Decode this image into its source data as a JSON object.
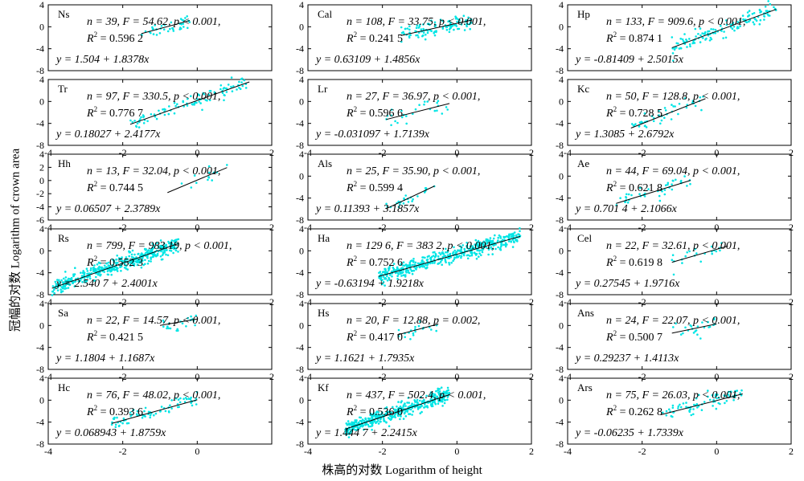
{
  "figure": {
    "xlabel": "株高的对数 Logarithm of height",
    "ylabel": "冠幅的对数 Logarithm of crown area"
  },
  "chart_data": [
    {
      "type": "scatter",
      "species": "Ns",
      "stats": "n = 39, F = 54.62, p < 0.001,",
      "r2_prefix": "R",
      "r2_value": " = 0.596 2",
      "equation": "y = 1.504 + 1.8378x",
      "intercept": 1.504,
      "slope": 1.8378,
      "xrange": [
        -1.5,
        -0.2
      ],
      "n_points": 39,
      "xlim": [
        -4,
        2
      ],
      "ylim": [
        -8,
        4
      ],
      "xticks": [],
      "yticks": [
        "4",
        "0",
        "-4",
        "-8"
      ],
      "point_color": "#00e5e5"
    },
    {
      "type": "scatter",
      "species": "Cal",
      "stats": "n = 108, F = 33.75, p < 0.001,",
      "r2_prefix": "R",
      "r2_value": " = 0.241 5",
      "equation": "y = 0.63109 + 1.4856x",
      "intercept": 0.63109,
      "slope": 1.4856,
      "xrange": [
        -1.5,
        0.4
      ],
      "n_points": 108,
      "xlim": [
        -4,
        2
      ],
      "ylim": [
        -8,
        4
      ],
      "xticks": [],
      "yticks": [
        "4",
        "0",
        "-4",
        "-8"
      ],
      "point_color": "#00e5e5"
    },
    {
      "type": "scatter",
      "species": "Hp",
      "stats": "n = 133, F = 909.6, p < 0.001,",
      "r2_prefix": "R",
      "r2_value": " = 0.874 1",
      "equation": "y = -0.81409 + 2.5015x",
      "intercept": -0.81409,
      "slope": 2.5015,
      "xrange": [
        -1.2,
        1.6
      ],
      "n_points": 133,
      "xlim": [
        -4,
        2
      ],
      "ylim": [
        -8,
        4
      ],
      "xticks": [],
      "yticks": [
        "4",
        "0",
        "-4",
        "-8"
      ],
      "point_color": "#00e5e5"
    },
    {
      "type": "scatter",
      "species": "Tr",
      "stats": "n = 97, F = 330.5, p < 0.001,",
      "r2_prefix": "R",
      "r2_value": " = 0.776 7",
      "equation": "y = 0.18027 + 2.4177x",
      "intercept": 0.18027,
      "slope": 2.4177,
      "xrange": [
        -1.8,
        1.4
      ],
      "n_points": 97,
      "xlim": [
        -4,
        2
      ],
      "ylim": [
        -8,
        4
      ],
      "xticks": [
        "-4",
        "-2",
        "0",
        "2"
      ],
      "yticks": [
        "4",
        "0",
        "-4",
        "-8"
      ],
      "point_color": "#00e5e5"
    },
    {
      "type": "scatter",
      "species": "Lr",
      "stats": "n = 27, F = 36.97, p < 0.001,",
      "r2_prefix": "R",
      "r2_value": " = 0.596 6",
      "equation": "y = -0.031097 + 1.7139x",
      "intercept": -0.031097,
      "slope": 1.7139,
      "xrange": [
        -1.9,
        -0.2
      ],
      "n_points": 27,
      "xlim": [
        -4,
        2
      ],
      "ylim": [
        -8,
        4
      ],
      "xticks": [
        "-4",
        "-2",
        "0",
        "2"
      ],
      "yticks": [
        "4",
        "0",
        "-4",
        "-8"
      ],
      "point_color": "#00e5e5"
    },
    {
      "type": "scatter",
      "species": "Kc",
      "stats": "n = 50, F = 128.8, p < 0.001,",
      "r2_prefix": "R",
      "r2_value": " = 0.728 5",
      "equation": "y = 1.3085 + 2.6792x",
      "intercept": 1.3085,
      "slope": 2.6792,
      "xrange": [
        -2.3,
        -0.3
      ],
      "n_points": 50,
      "xlim": [
        -4,
        2
      ],
      "ylim": [
        -8,
        4
      ],
      "xticks": [
        "-4",
        "-2",
        "0",
        "2"
      ],
      "yticks": [
        "4",
        "0",
        "-4",
        "-8"
      ],
      "point_color": "#00e5e5"
    },
    {
      "type": "scatter",
      "species": "Hh",
      "stats": "n = 13, F = 32.04, p < 0.001,",
      "r2_prefix": "R",
      "r2_value": " = 0.744 5",
      "equation": "y = 0.06507 + 2.3789x",
      "intercept": 0.06507,
      "slope": 2.3789,
      "xrange": [
        -0.8,
        0.8
      ],
      "n_points": 13,
      "xlim": [
        -4,
        2
      ],
      "ylim": [
        -6,
        4
      ],
      "xticks": [
        "-4",
        "-2",
        "0",
        "2"
      ],
      "yticks": [
        "4",
        "2",
        "0",
        "-2",
        "-4",
        "-6"
      ],
      "point_color": "#00e5e5"
    },
    {
      "type": "scatter",
      "species": "Als",
      "stats": "n = 25, F = 35.90, p < 0.001,",
      "r2_prefix": "R",
      "r2_value": " = 0.599 4",
      "equation": "y = 0.11393 + 3.1857x",
      "intercept": 0.11393,
      "slope": 3.1857,
      "xrange": [
        -1.9,
        -0.6
      ],
      "n_points": 25,
      "xlim": [
        -4,
        2
      ],
      "ylim": [
        -8,
        4
      ],
      "xticks": [
        "-4",
        "-2",
        "0",
        "2"
      ],
      "yticks": [
        "4",
        "0",
        "-4",
        "-8"
      ],
      "point_color": "#00e5e5"
    },
    {
      "type": "scatter",
      "species": "Ae",
      "stats": "n = 44, F = 69.04, p < 0.001,",
      "r2_prefix": "R",
      "r2_value": " = 0.621 8",
      "equation": "y = 0.701 4 + 2.1066x",
      "intercept": 0.7014,
      "slope": 2.1066,
      "xrange": [
        -2.7,
        -0.7
      ],
      "n_points": 44,
      "xlim": [
        -4,
        2
      ],
      "ylim": [
        -8,
        4
      ],
      "xticks": [
        "-4",
        "-2",
        "0",
        "2"
      ],
      "yticks": [
        "4",
        "0",
        "-4",
        "-8"
      ],
      "point_color": "#00e5e5"
    },
    {
      "type": "scatter",
      "species": "Rs",
      "stats": "n = 799, F = 983.19, p < 0.001,",
      "r2_prefix": "R",
      "r2_value": " = 0.552 3",
      "equation": "y = 2.540 7 + 2.4001x",
      "intercept": 2.5407,
      "slope": 2.4001,
      "xrange": [
        -3.9,
        -0.5
      ],
      "n_points": 799,
      "xlim": [
        -4,
        2
      ],
      "ylim": [
        -8,
        4
      ],
      "xticks": [
        "-4",
        "-2",
        "0",
        "2"
      ],
      "yticks": [
        "4",
        "0",
        "-4",
        "-8"
      ],
      "point_color": "#00e5e5"
    },
    {
      "type": "scatter",
      "species": "Ha",
      "stats": "n = 129 6, F = 383 2, p < 0.001,",
      "r2_prefix": "R",
      "r2_value": " = 0.752 6",
      "equation": "y = -0.63194 + 1.9218x",
      "intercept": -0.63194,
      "slope": 1.9218,
      "xrange": [
        -2.1,
        1.7
      ],
      "n_points": 1296,
      "xlim": [
        -4,
        2
      ],
      "ylim": [
        -8,
        4
      ],
      "xticks": [
        "-4",
        "-2",
        "0",
        "2"
      ],
      "yticks": [
        "4",
        "0",
        "-4",
        "-8"
      ],
      "point_color": "#00e5e5"
    },
    {
      "type": "scatter",
      "species": "Cel",
      "stats": "n = 22, F = 32.61, p < 0.001,",
      "r2_prefix": "R",
      "r2_value": " = 0.619 8",
      "equation": "y = 0.27545 + 1.9716x",
      "intercept": 0.27545,
      "slope": 1.9716,
      "xrange": [
        -1.2,
        0.3
      ],
      "n_points": 22,
      "xlim": [
        -4,
        2
      ],
      "ylim": [
        -8,
        4
      ],
      "xticks": [
        "-4",
        "-2",
        "0",
        "2"
      ],
      "yticks": [
        "4",
        "0",
        "-4",
        "-8"
      ],
      "point_color": "#00e5e5"
    },
    {
      "type": "scatter",
      "species": "Sa",
      "stats": "n = 22, F = 14.57, p < 0.001,",
      "r2_prefix": "R",
      "r2_value": " = 0.421 5",
      "equation": "y = 1.1804 + 1.1687x",
      "intercept": 1.1804,
      "slope": 1.1687,
      "xrange": [
        -1.0,
        0.0
      ],
      "n_points": 22,
      "xlim": [
        -4,
        2
      ],
      "ylim": [
        -8,
        4
      ],
      "xticks": [
        "-4",
        "-2",
        "0",
        "2"
      ],
      "yticks": [
        "4",
        "0",
        "-4",
        "-8"
      ],
      "point_color": "#00e5e5"
    },
    {
      "type": "scatter",
      "species": "Hs",
      "stats": "n = 20, F = 12.88, p = 0.002,",
      "r2_prefix": "R",
      "r2_value": " = 0.417 0",
      "equation": "y = 1.1621 + 1.7935x",
      "intercept": 1.1621,
      "slope": 1.7935,
      "xrange": [
        -1.6,
        -0.5
      ],
      "n_points": 20,
      "xlim": [
        -4,
        2
      ],
      "ylim": [
        -8,
        4
      ],
      "xticks": [
        "-4",
        "-2",
        "0",
        "2"
      ],
      "yticks": [
        "4",
        "0",
        "-4",
        "-8"
      ],
      "point_color": "#00e5e5"
    },
    {
      "type": "scatter",
      "species": "Ans",
      "stats": "n = 24, F = 22.07, p < 0.001,",
      "r2_prefix": "R",
      "r2_value": " = 0.500 7",
      "equation": "y = 0.29237 + 1.4113x",
      "intercept": 0.29237,
      "slope": 1.4113,
      "xrange": [
        -1.2,
        0.0
      ],
      "n_points": 24,
      "xlim": [
        -4,
        2
      ],
      "ylim": [
        -8,
        4
      ],
      "xticks": [
        "-4",
        "-2",
        "0",
        "2"
      ],
      "yticks": [
        "4",
        "0",
        "-4",
        "-8"
      ],
      "point_color": "#00e5e5"
    },
    {
      "type": "scatter",
      "species": "Hc",
      "stats": "n = 76, F = 48.02, p < 0.001,",
      "r2_prefix": "R",
      "r2_value": " = 0.393 6",
      "equation": "y = 0.068943 + 1.8759x",
      "intercept": 0.068943,
      "slope": 1.8759,
      "xrange": [
        -2.3,
        0.0
      ],
      "n_points": 76,
      "xlim": [
        -4,
        2
      ],
      "ylim": [
        -8,
        4
      ],
      "xticks": [
        "-4",
        "-2",
        "0"
      ],
      "yticks": [
        "4",
        "0",
        "-4",
        "-8"
      ],
      "point_color": "#00e5e5"
    },
    {
      "type": "scatter",
      "species": "Kf",
      "stats": "n = 437, F = 502.4, p < 0.001,",
      "r2_prefix": "R",
      "r2_value": " = 0.536 0",
      "equation": "y = 1.444 7 + 2.2415x",
      "intercept": 1.4447,
      "slope": 2.2415,
      "xrange": [
        -3.0,
        -0.2
      ],
      "n_points": 437,
      "xlim": [
        -4,
        2
      ],
      "ylim": [
        -8,
        4
      ],
      "xticks": [
        "-4",
        "-2",
        "0",
        "2"
      ],
      "yticks": [
        "4",
        "0",
        "-4",
        "-8"
      ],
      "point_color": "#00e5e5"
    },
    {
      "type": "scatter",
      "species": "Ars",
      "stats": "n = 75, F = 26.03, p < 0.001,",
      "r2_prefix": "R",
      "r2_value": " = 0.262 8",
      "equation": "y = -0.06235 + 1.7339x",
      "intercept": -0.06235,
      "slope": 1.7339,
      "xrange": [
        -1.5,
        0.7
      ],
      "n_points": 75,
      "xlim": [
        -4,
        2
      ],
      "ylim": [
        -8,
        4
      ],
      "xticks": [
        "-4",
        "-2",
        "0",
        "2"
      ],
      "yticks": [
        "4",
        "0",
        "-4",
        "-8"
      ],
      "point_color": "#00e5e5"
    }
  ]
}
